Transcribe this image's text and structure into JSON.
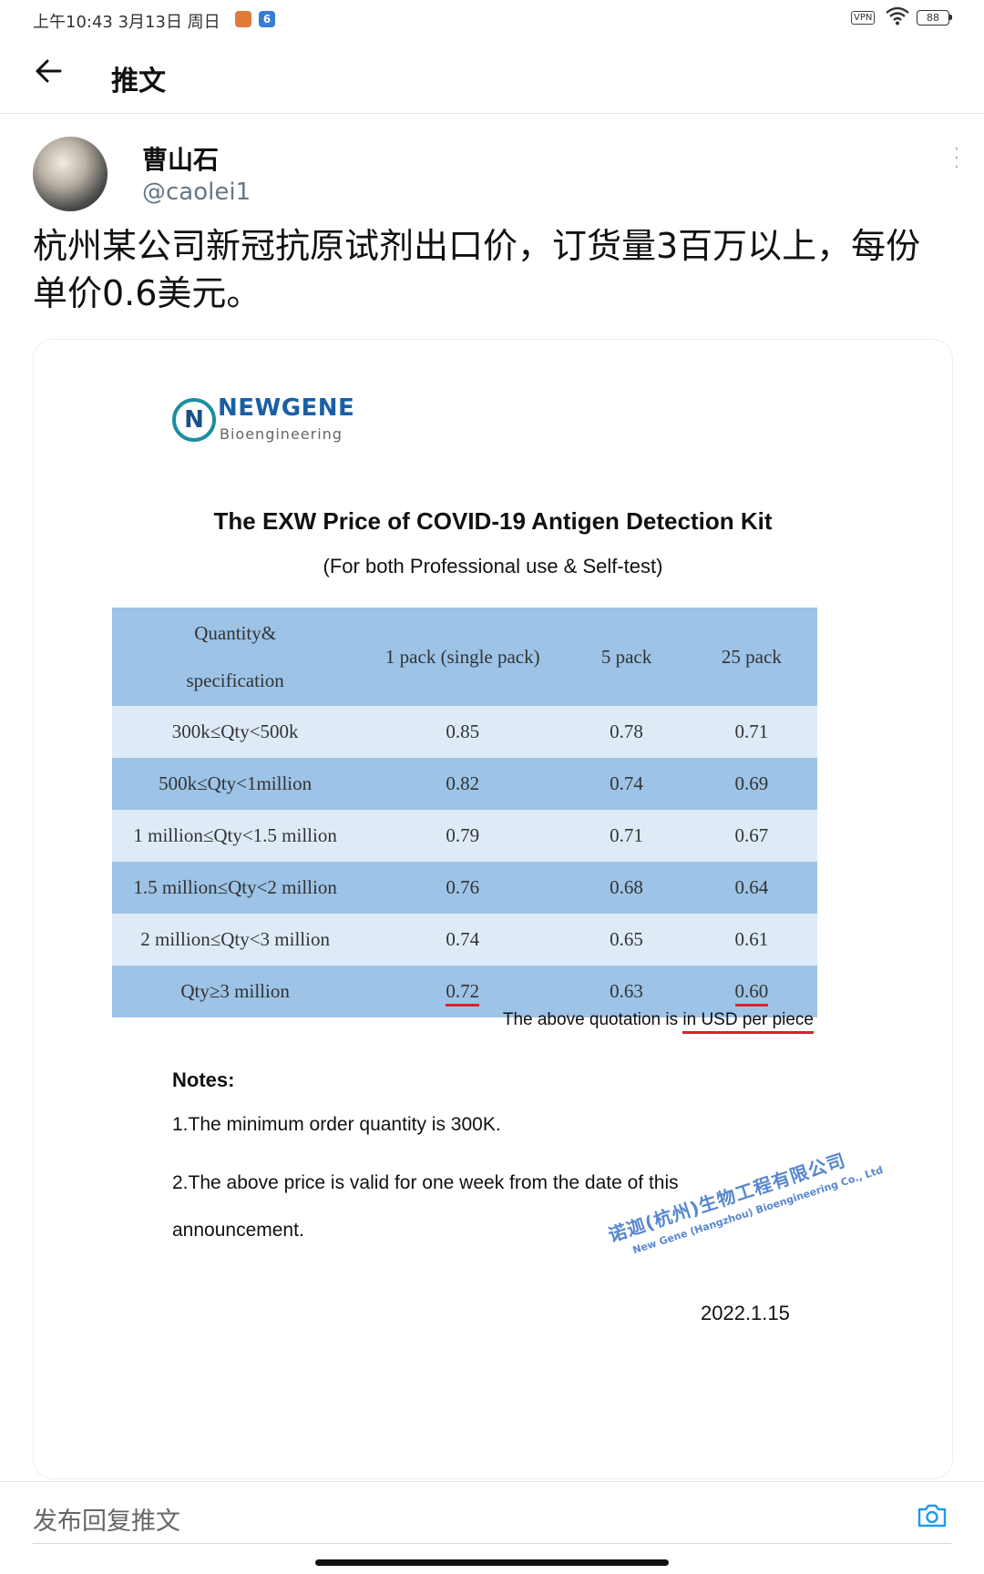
{
  "status_bar": {
    "time": "上午10:43  3月13日 周日",
    "app1_glyph": "",
    "app2_glyph": "6",
    "vpn": "VPN",
    "battery": "88",
    "wifi_icon": "wifi-icon"
  },
  "header": {
    "title": "推文"
  },
  "author": {
    "name": "曹山石",
    "handle": "@caolei1"
  },
  "tweet": {
    "text": "杭州某公司新冠抗原试剂出口价，订货量3百万以上，每份单价0.6美元。"
  },
  "document": {
    "logo_name": "NEWGENE",
    "logo_sub": "Bioengineering",
    "logo_mark": "N",
    "title": "The EXW Price of COVID-19 Antigen Detection Kit",
    "subtitle": "(For both Professional use & Self-test)",
    "table": {
      "header": {
        "col0_line1": "Quantity&",
        "col0_line2": "specification",
        "col1": "1 pack (single pack)",
        "col2": "5 pack",
        "col3": "25 pack"
      },
      "rows": [
        {
          "qty": "300k≤Qty<500k",
          "p1": "0.85",
          "p5": "0.78",
          "p25": "0.71"
        },
        {
          "qty": "500k≤Qty<1million",
          "p1": "0.82",
          "p5": "0.74",
          "p25": "0.69"
        },
        {
          "qty": "1 million≤Qty<1.5 million",
          "p1": "0.79",
          "p5": "0.71",
          "p25": "0.67"
        },
        {
          "qty": "1.5 million≤Qty<2 million",
          "p1": "0.76",
          "p5": "0.68",
          "p25": "0.64"
        },
        {
          "qty": "2 million≤Qty<3 million",
          "p1": "0.74",
          "p5": "0.65",
          "p25": "0.61"
        },
        {
          "qty": "Qty≥3 million",
          "p1": "0.72",
          "p5": "0.63",
          "p25": "0.60"
        }
      ]
    },
    "quote_note_prefix": "The above quotation is ",
    "quote_note_highlight": "in USD per piece",
    "notes_title": "Notes:",
    "note_1": "1.The minimum order quantity is 300K.",
    "note_2": "2.The above price is valid for one week from the date of this announcement.",
    "seal_cn": "诺迦(杭州)生物工程有限公司",
    "seal_en": "New Gene (Hangzhou) Bioengineering Co., Ltd",
    "date": "2022.1.15",
    "highlight_color": "#d9232e"
  },
  "reply": {
    "placeholder": "发布回复推文"
  },
  "colors": {
    "table_dark": "#9dc3e6",
    "table_light": "#deebf7",
    "handle_gray": "#657786",
    "logo_blue": "#1a5fa5"
  }
}
